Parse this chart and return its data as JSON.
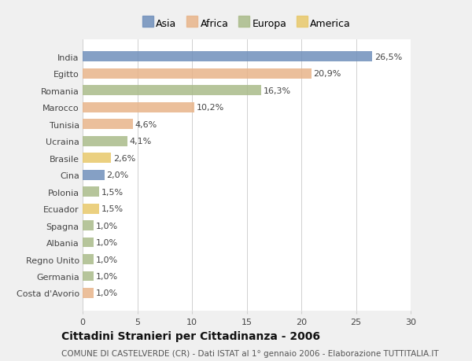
{
  "countries": [
    "India",
    "Egitto",
    "Romania",
    "Marocco",
    "Tunisia",
    "Ucraina",
    "Brasile",
    "Cina",
    "Polonia",
    "Ecuador",
    "Spagna",
    "Albania",
    "Regno Unito",
    "Germania",
    "Costa d'Avorio"
  ],
  "values": [
    26.5,
    20.9,
    16.3,
    10.2,
    4.6,
    4.1,
    2.6,
    2.0,
    1.5,
    1.5,
    1.0,
    1.0,
    1.0,
    1.0,
    1.0
  ],
  "labels": [
    "26,5%",
    "20,9%",
    "16,3%",
    "10,2%",
    "4,6%",
    "4,1%",
    "2,6%",
    "2,0%",
    "1,5%",
    "1,5%",
    "1,0%",
    "1,0%",
    "1,0%",
    "1,0%",
    "1,0%"
  ],
  "continents": [
    "Asia",
    "Africa",
    "Europa",
    "Africa",
    "Africa",
    "Europa",
    "America",
    "Asia",
    "Europa",
    "America",
    "Europa",
    "Europa",
    "Europa",
    "Europa",
    "Africa"
  ],
  "colors": {
    "Asia": "#7090bb",
    "Africa": "#e8b48a",
    "Europa": "#aabb8a",
    "America": "#e8c86a"
  },
  "legend_order": [
    "Asia",
    "Africa",
    "Europa",
    "America"
  ],
  "xlim": [
    0,
    30
  ],
  "xticks": [
    0,
    5,
    10,
    15,
    20,
    25,
    30
  ],
  "title": "Cittadini Stranieri per Cittadinanza - 2006",
  "subtitle": "COMUNE DI CASTELVERDE (CR) - Dati ISTAT al 1° gennaio 2006 - Elaborazione TUTTITALIA.IT",
  "background_color": "#f0f0f0",
  "bar_background": "#ffffff",
  "grid_color": "#d0d0d0",
  "title_fontsize": 10,
  "subtitle_fontsize": 7.5,
  "label_fontsize": 8,
  "tick_fontsize": 8,
  "legend_fontsize": 9
}
